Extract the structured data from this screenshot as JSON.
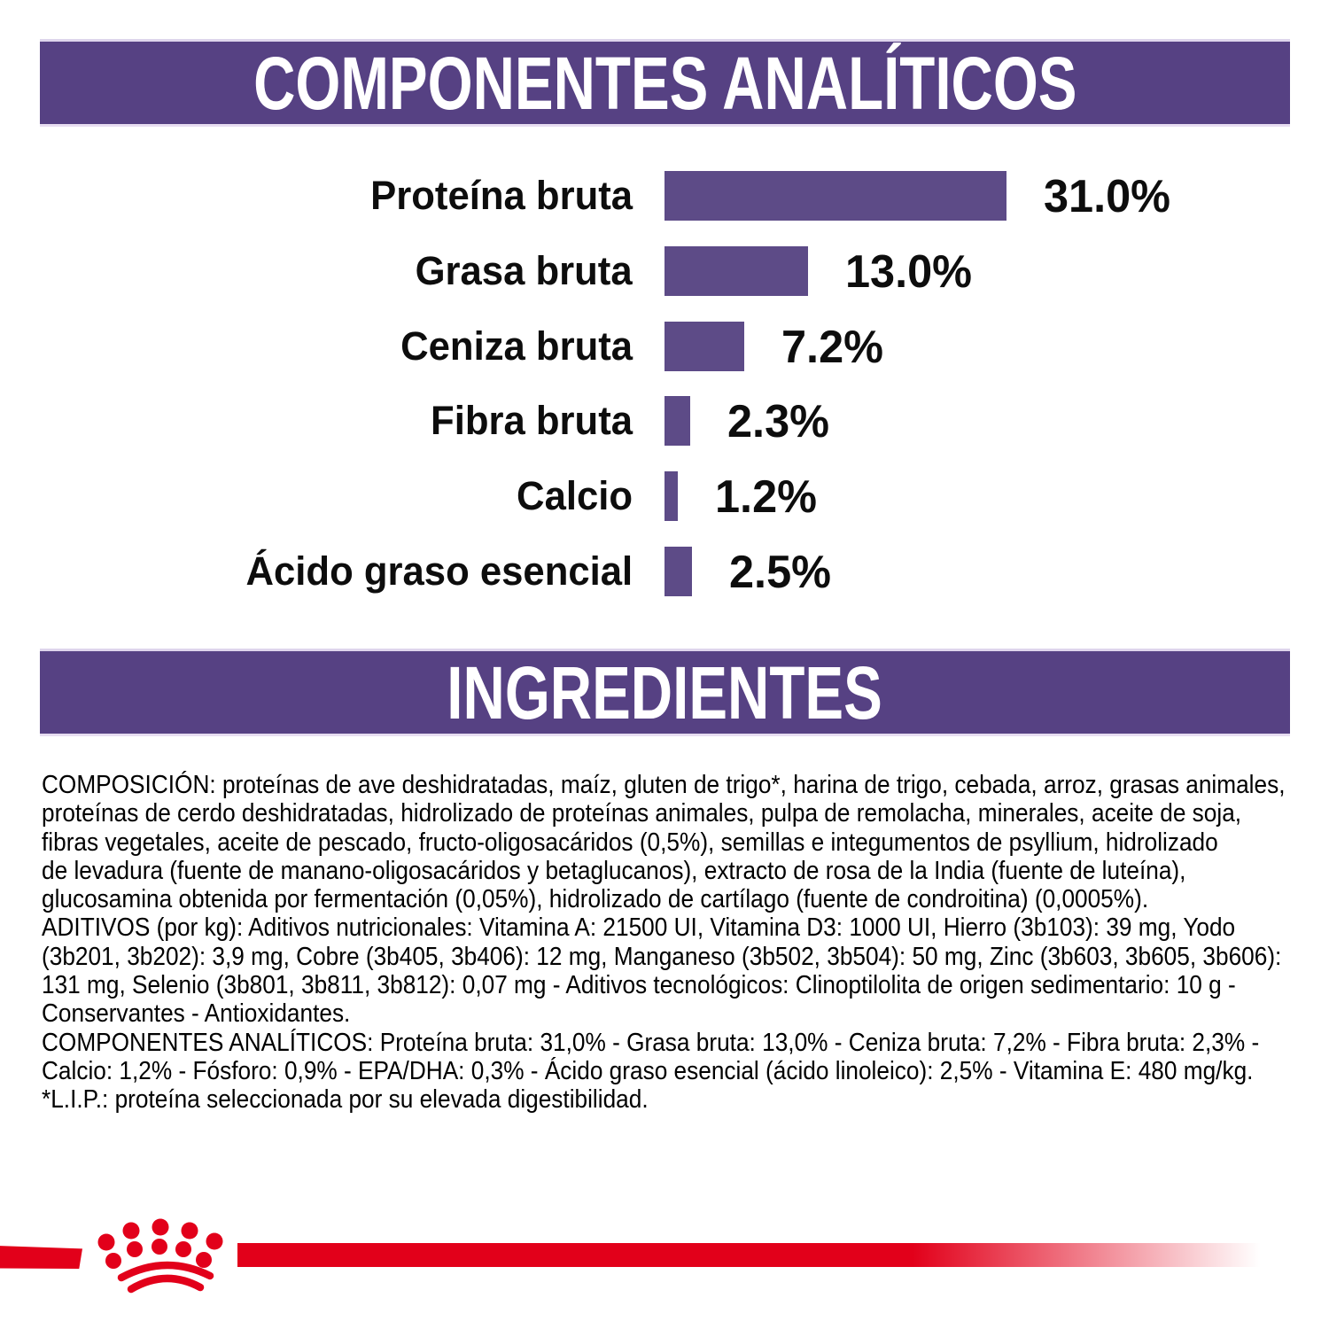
{
  "title_bars": {
    "analytical": "COMPONENTES ANALÍTICOS",
    "ingredients": "INGREDIENTES"
  },
  "colors": {
    "header_band_purple": "#564183",
    "bar_purple": "#5d4b87",
    "brand_red": "#e2001a",
    "text_black": "#0d0d0d",
    "band_text_white": "#ffffff"
  },
  "chart_data": {
    "type": "bar",
    "orientation": "horizontal",
    "title": "COMPONENTES ANALÍTICOS",
    "categories": [
      "Proteína bruta",
      "Grasa bruta",
      "Ceniza bruta",
      "Fibra bruta",
      "Calcio",
      "Ácido graso esencial"
    ],
    "values": [
      31.0,
      13.0,
      7.2,
      2.3,
      1.2,
      2.5
    ],
    "value_labels": [
      "31.0%",
      "13.0%",
      "7.2%",
      "2.3%",
      "1.2%",
      "2.5%"
    ],
    "unit": "%",
    "xlim": [
      0,
      31
    ],
    "grid": false,
    "legend": false,
    "bar_color": "#5d4b87"
  },
  "ingredients_text": {
    "lines": [
      "COMPOSICIÓN: proteínas de ave deshidratadas, maíz, gluten de trigo*, harina de trigo, cebada, arroz, grasas animales,",
      "proteínas de cerdo deshidratadas, hidrolizado de proteínas animales, pulpa de remolacha, minerales, aceite de soja,",
      "fibras vegetales, aceite de pescado, fructo-oligosacáridos (0,5%), semillas e integumentos de psyllium, hidrolizado",
      "de levadura (fuente de manano-oligosacáridos y betaglucanos), extracto de rosa de la India (fuente de luteína),",
      "glucosamina obtenida por fermentación (0,05%), hidrolizado de cartílago (fuente de condroitina) (0,0005%).",
      "ADITIVOS (por kg): Aditivos nutricionales: Vitamina A: 21500 UI, Vitamina D3: 1000 UI, Hierro (3b103): 39 mg, Yodo",
      "(3b201, 3b202): 3,9 mg, Cobre (3b405, 3b406): 12 mg, Manganeso (3b502, 3b504): 50 mg, Zinc (3b603, 3b605, 3b606):",
      "131 mg, Selenio (3b801, 3b811, 3b812): 0,07 mg - Aditivos tecnológicos: Clinoptilolita de origen sedimentario: 10 g -",
      "Conservantes - Antioxidantes.",
      "COMPONENTES ANALÍTICOS: Proteína bruta: 31,0% - Grasa bruta: 13,0% - Ceniza bruta: 7,2% - Fibra bruta: 2,3% -",
      "Calcio: 1,2% - Fósforo: 0,9% - EPA/DHA: 0,3% - Ácido graso esencial (ácido linoleico): 2,5% - Vitamina E: 480 mg/kg.",
      "*L.I.P.: proteína seleccionada por su elevada digestibilidad."
    ]
  },
  "footer": {
    "brand_logo": "royal-canin-crown"
  }
}
